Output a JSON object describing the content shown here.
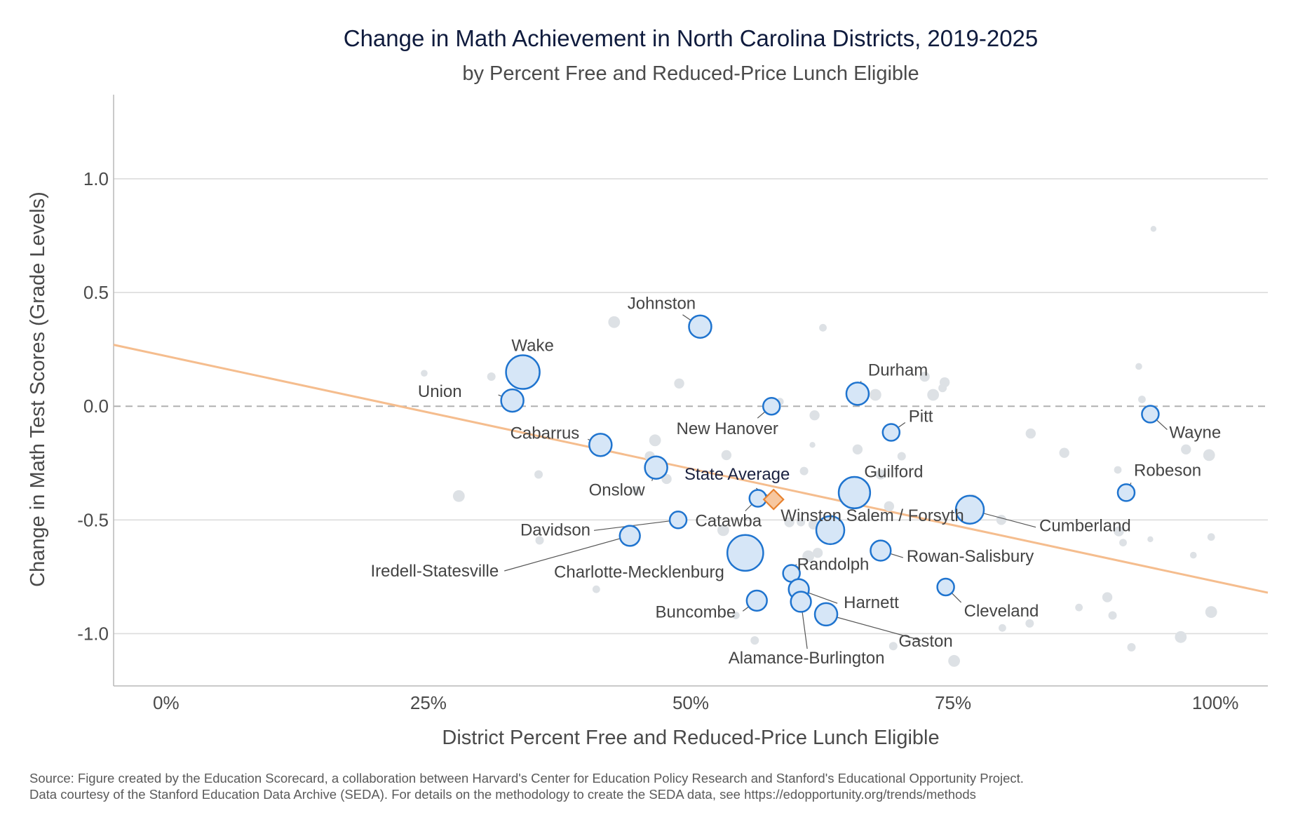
{
  "chart_data": {
    "type": "scatter",
    "title": "Change in Math Achievement in North Carolina Districts, 2019-2025",
    "subtitle": "by Percent Free and Reduced-Price Lunch Eligible",
    "xlabel": "District Percent Free and Reduced-Price Lunch Eligible",
    "ylabel": "Change in Math Test Scores (Grade Levels)",
    "xlim": [
      -5,
      105
    ],
    "ylim": [
      -1.23,
      1.37
    ],
    "x_ticks": [
      {
        "value": 0,
        "label": "0%"
      },
      {
        "value": 25,
        "label": "25%"
      },
      {
        "value": 50,
        "label": "50%"
      },
      {
        "value": 75,
        "label": "75%"
      },
      {
        "value": 100,
        "label": "100%"
      }
    ],
    "y_ticks": [
      {
        "value": 1.0,
        "label": "1.0"
      },
      {
        "value": 0.5,
        "label": "0.5"
      },
      {
        "value": 0.0,
        "label": "0.0"
      },
      {
        "value": -0.5,
        "label": "-0.5"
      },
      {
        "value": -1.0,
        "label": "-1.0"
      }
    ],
    "grid": true,
    "zero_line": "dashed",
    "trend_line": {
      "y_at_xmin": 0.27,
      "y_at_xmax": -0.82
    },
    "state_average": {
      "label": "State Average",
      "x": 57.9,
      "y": -0.41
    },
    "highlighted_districts": [
      {
        "label": "Wake",
        "x": 34.0,
        "y": 0.15,
        "size": 3
      },
      {
        "label": "Union",
        "x": 33.0,
        "y": 0.025,
        "size": 2
      },
      {
        "label": "Johnston",
        "x": 50.9,
        "y": 0.35,
        "size": 2
      },
      {
        "label": "Durham",
        "x": 65.9,
        "y": 0.055,
        "size": 2
      },
      {
        "label": "New Hanover",
        "x": 57.7,
        "y": 0.0,
        "size": 1.5
      },
      {
        "label": "Pitt",
        "x": 69.1,
        "y": -0.115,
        "size": 1.5
      },
      {
        "label": "Wayne",
        "x": 93.8,
        "y": -0.035,
        "size": 1.5
      },
      {
        "label": "Cabarrus",
        "x": 41.4,
        "y": -0.17,
        "size": 2
      },
      {
        "label": "Onslow",
        "x": 46.7,
        "y": -0.27,
        "size": 2
      },
      {
        "label": "Guilford",
        "x": 65.6,
        "y": -0.38,
        "size": 2.8
      },
      {
        "label": "Robeson",
        "x": 91.5,
        "y": -0.38,
        "size": 1.5
      },
      {
        "label": "Catawba",
        "x": 56.4,
        "y": -0.405,
        "size": 1.5
      },
      {
        "label": "Cumberland",
        "x": 76.6,
        "y": -0.455,
        "size": 2.5
      },
      {
        "label": "Davidson",
        "x": 48.8,
        "y": -0.5,
        "size": 1.5
      },
      {
        "label": "Winston Salem / Forsyth",
        "x": 63.3,
        "y": -0.545,
        "size": 2.5
      },
      {
        "label": "Iredell-Statesville",
        "x": 44.2,
        "y": -0.57,
        "size": 1.8
      },
      {
        "label": "Rowan-Salisbury",
        "x": 68.1,
        "y": -0.635,
        "size": 1.8
      },
      {
        "label": "Charlotte-Mecklenburg",
        "x": 55.2,
        "y": -0.645,
        "size": 3.2
      },
      {
        "label": "Randolph",
        "x": 59.6,
        "y": -0.735,
        "size": 1.5
      },
      {
        "label": "Cleveland",
        "x": 74.3,
        "y": -0.795,
        "size": 1.5
      },
      {
        "label": "Harnett",
        "x": 60.3,
        "y": -0.805,
        "size": 1.8
      },
      {
        "label": "Buncombe",
        "x": 56.3,
        "y": -0.855,
        "size": 1.8
      },
      {
        "label": "Alamance-Burlington",
        "x": 60.5,
        "y": -0.86,
        "size": 1.8
      },
      {
        "label": "Gaston",
        "x": 62.9,
        "y": -0.915,
        "size": 2.0
      }
    ],
    "other_districts": [
      {
        "x": 24.6,
        "y": 0.145,
        "size": 0.8
      },
      {
        "x": 31.0,
        "y": 0.13,
        "size": 1.0
      },
      {
        "x": 42.7,
        "y": 0.37,
        "size": 1.4
      },
      {
        "x": 48.9,
        "y": 0.1,
        "size": 1.2
      },
      {
        "x": 62.6,
        "y": 0.345,
        "size": 0.9
      },
      {
        "x": 58.5,
        "y": 0.02,
        "size": 0.9
      },
      {
        "x": 61.8,
        "y": -0.04,
        "size": 1.2
      },
      {
        "x": 67.6,
        "y": 0.05,
        "size": 1.4
      },
      {
        "x": 72.3,
        "y": 0.13,
        "size": 1.2
      },
      {
        "x": 73.1,
        "y": 0.05,
        "size": 1.4
      },
      {
        "x": 74.0,
        "y": 0.08,
        "size": 1.0
      },
      {
        "x": 74.2,
        "y": 0.105,
        "size": 1.2
      },
      {
        "x": 92.7,
        "y": 0.175,
        "size": 0.8
      },
      {
        "x": 94.1,
        "y": 0.78,
        "size": 0.7
      },
      {
        "x": 93.0,
        "y": 0.03,
        "size": 0.9
      },
      {
        "x": 46.6,
        "y": -0.15,
        "size": 1.4
      },
      {
        "x": 46.1,
        "y": -0.22,
        "size": 1.2
      },
      {
        "x": 47.7,
        "y": -0.32,
        "size": 1.2
      },
      {
        "x": 35.5,
        "y": -0.3,
        "size": 1.0
      },
      {
        "x": 27.9,
        "y": -0.395,
        "size": 1.4
      },
      {
        "x": 44.8,
        "y": -0.37,
        "size": 1.0
      },
      {
        "x": 53.4,
        "y": -0.215,
        "size": 1.2
      },
      {
        "x": 61.6,
        "y": -0.17,
        "size": 0.7
      },
      {
        "x": 65.9,
        "y": -0.19,
        "size": 1.2
      },
      {
        "x": 70.1,
        "y": -0.22,
        "size": 1.0
      },
      {
        "x": 60.8,
        "y": -0.285,
        "size": 1.0
      },
      {
        "x": 68.1,
        "y": -0.3,
        "size": 1.2
      },
      {
        "x": 68.9,
        "y": -0.44,
        "size": 1.2
      },
      {
        "x": 76.9,
        "y": -0.41,
        "size": 1.2
      },
      {
        "x": 79.6,
        "y": -0.5,
        "size": 1.2
      },
      {
        "x": 59.4,
        "y": -0.51,
        "size": 1.2
      },
      {
        "x": 60.5,
        "y": -0.51,
        "size": 1.0
      },
      {
        "x": 61.7,
        "y": -0.52,
        "size": 1.2
      },
      {
        "x": 53.1,
        "y": -0.545,
        "size": 1.4
      },
      {
        "x": 35.6,
        "y": -0.59,
        "size": 1.0
      },
      {
        "x": 61.2,
        "y": -0.66,
        "size": 1.4
      },
      {
        "x": 62.1,
        "y": -0.645,
        "size": 1.2
      },
      {
        "x": 41.0,
        "y": -0.805,
        "size": 0.9
      },
      {
        "x": 54.3,
        "y": -0.92,
        "size": 0.9
      },
      {
        "x": 56.1,
        "y": -1.03,
        "size": 1.0
      },
      {
        "x": 69.3,
        "y": -1.055,
        "size": 1.0
      },
      {
        "x": 79.7,
        "y": -0.975,
        "size": 0.9
      },
      {
        "x": 82.3,
        "y": -0.955,
        "size": 1.0
      },
      {
        "x": 75.1,
        "y": -1.12,
        "size": 1.4
      },
      {
        "x": 82.4,
        "y": -0.12,
        "size": 1.2
      },
      {
        "x": 85.6,
        "y": -0.205,
        "size": 1.2
      },
      {
        "x": 90.7,
        "y": -0.28,
        "size": 0.9
      },
      {
        "x": 97.2,
        "y": -0.19,
        "size": 1.2
      },
      {
        "x": 99.4,
        "y": -0.215,
        "size": 1.4
      },
      {
        "x": 90.8,
        "y": -0.55,
        "size": 1.2
      },
      {
        "x": 91.2,
        "y": -0.6,
        "size": 0.9
      },
      {
        "x": 93.8,
        "y": -0.585,
        "size": 0.7
      },
      {
        "x": 97.9,
        "y": -0.655,
        "size": 0.8
      },
      {
        "x": 99.6,
        "y": -0.575,
        "size": 0.9
      },
      {
        "x": 87.0,
        "y": -0.885,
        "size": 0.9
      },
      {
        "x": 89.7,
        "y": -0.84,
        "size": 1.2
      },
      {
        "x": 90.2,
        "y": -0.92,
        "size": 1.0
      },
      {
        "x": 92.0,
        "y": -1.06,
        "size": 1.0
      },
      {
        "x": 96.7,
        "y": -1.015,
        "size": 1.4
      },
      {
        "x": 99.6,
        "y": -0.905,
        "size": 1.4
      }
    ]
  },
  "footer": {
    "source_line1": "Source: Figure created by the Education Scorecard, a collaboration between Harvard's Center for Education Policy Research and Stanford's Educational Opportunity Project.",
    "source_line2": "Data courtesy of the Stanford Education Data Archive (SEDA). For details on the methodology to create the SEDA data, see https://edopportunity.org/trends/methods"
  },
  "colors": {
    "highlight_fill": "#d6e6f7",
    "highlight_stroke": "#1f74cf",
    "other_fill": "#dde1e5",
    "trend": "#f5bd8e",
    "state_avg_fill": "#f7c79f",
    "state_avg_stroke": "#e8822f",
    "gridline": "#dcdcdc",
    "zero_line": "#b0b0b0"
  }
}
